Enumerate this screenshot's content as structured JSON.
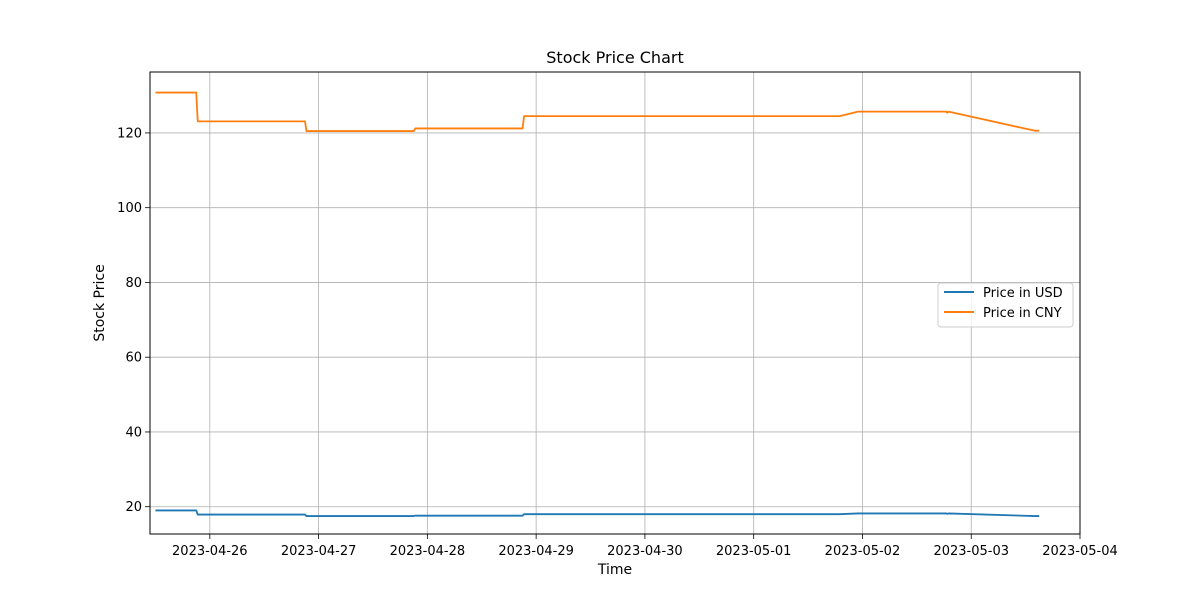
{
  "chart_data": {
    "type": "line",
    "title": "Stock Price Chart",
    "xlabel": "Time",
    "ylabel": "Stock Price",
    "x_axis_type": "date",
    "xlim": [
      "2023-04-25T10:48",
      "2023-05-04T00:00"
    ],
    "ylim": [
      12.7,
      136.3
    ],
    "x_ticks": [
      "2023-04-26",
      "2023-04-27",
      "2023-04-28",
      "2023-04-29",
      "2023-04-30",
      "2023-05-01",
      "2023-05-02",
      "2023-05-03",
      "2023-05-04"
    ],
    "y_ticks": [
      20,
      40,
      60,
      80,
      100,
      120
    ],
    "grid": true,
    "legend_position": "center-right",
    "series": [
      {
        "name": "Price in USD",
        "color": "#1f77b4",
        "points": [
          [
            "2023-04-25T12:00",
            19.0
          ],
          [
            "2023-04-25T21:00",
            19.0
          ],
          [
            "2023-04-25T21:20",
            17.9
          ],
          [
            "2023-04-26T21:00",
            17.9
          ],
          [
            "2023-04-26T21:20",
            17.5
          ],
          [
            "2023-04-27T21:00",
            17.5
          ],
          [
            "2023-04-27T21:20",
            17.6
          ],
          [
            "2023-04-28T21:00",
            17.6
          ],
          [
            "2023-04-28T21:20",
            18.0
          ],
          [
            "2023-05-01T19:00",
            18.0
          ],
          [
            "2023-05-01T23:00",
            18.2
          ],
          [
            "2023-05-02T18:30",
            18.2
          ],
          [
            "2023-05-02T18:40",
            18.1
          ],
          [
            "2023-05-02T19:00",
            18.2
          ],
          [
            "2023-05-03T14:00",
            17.5
          ],
          [
            "2023-05-03T15:00",
            17.5
          ]
        ]
      },
      {
        "name": "Price in CNY",
        "color": "#ff7f0e",
        "points": [
          [
            "2023-04-25T12:00",
            130.8
          ],
          [
            "2023-04-25T21:00",
            130.8
          ],
          [
            "2023-04-25T21:20",
            123.1
          ],
          [
            "2023-04-26T21:00",
            123.1
          ],
          [
            "2023-04-26T21:20",
            120.5
          ],
          [
            "2023-04-27T21:00",
            120.5
          ],
          [
            "2023-04-27T21:20",
            121.2
          ],
          [
            "2023-04-28T21:00",
            121.2
          ],
          [
            "2023-04-28T21:20",
            124.5
          ],
          [
            "2023-05-01T19:00",
            124.5
          ],
          [
            "2023-05-01T23:00",
            125.7
          ],
          [
            "2023-05-02T18:30",
            125.7
          ],
          [
            "2023-05-02T18:40",
            125.4
          ],
          [
            "2023-05-02T19:00",
            125.7
          ],
          [
            "2023-05-03T14:00",
            120.6
          ],
          [
            "2023-05-03T15:00",
            120.6
          ]
        ]
      }
    ]
  }
}
